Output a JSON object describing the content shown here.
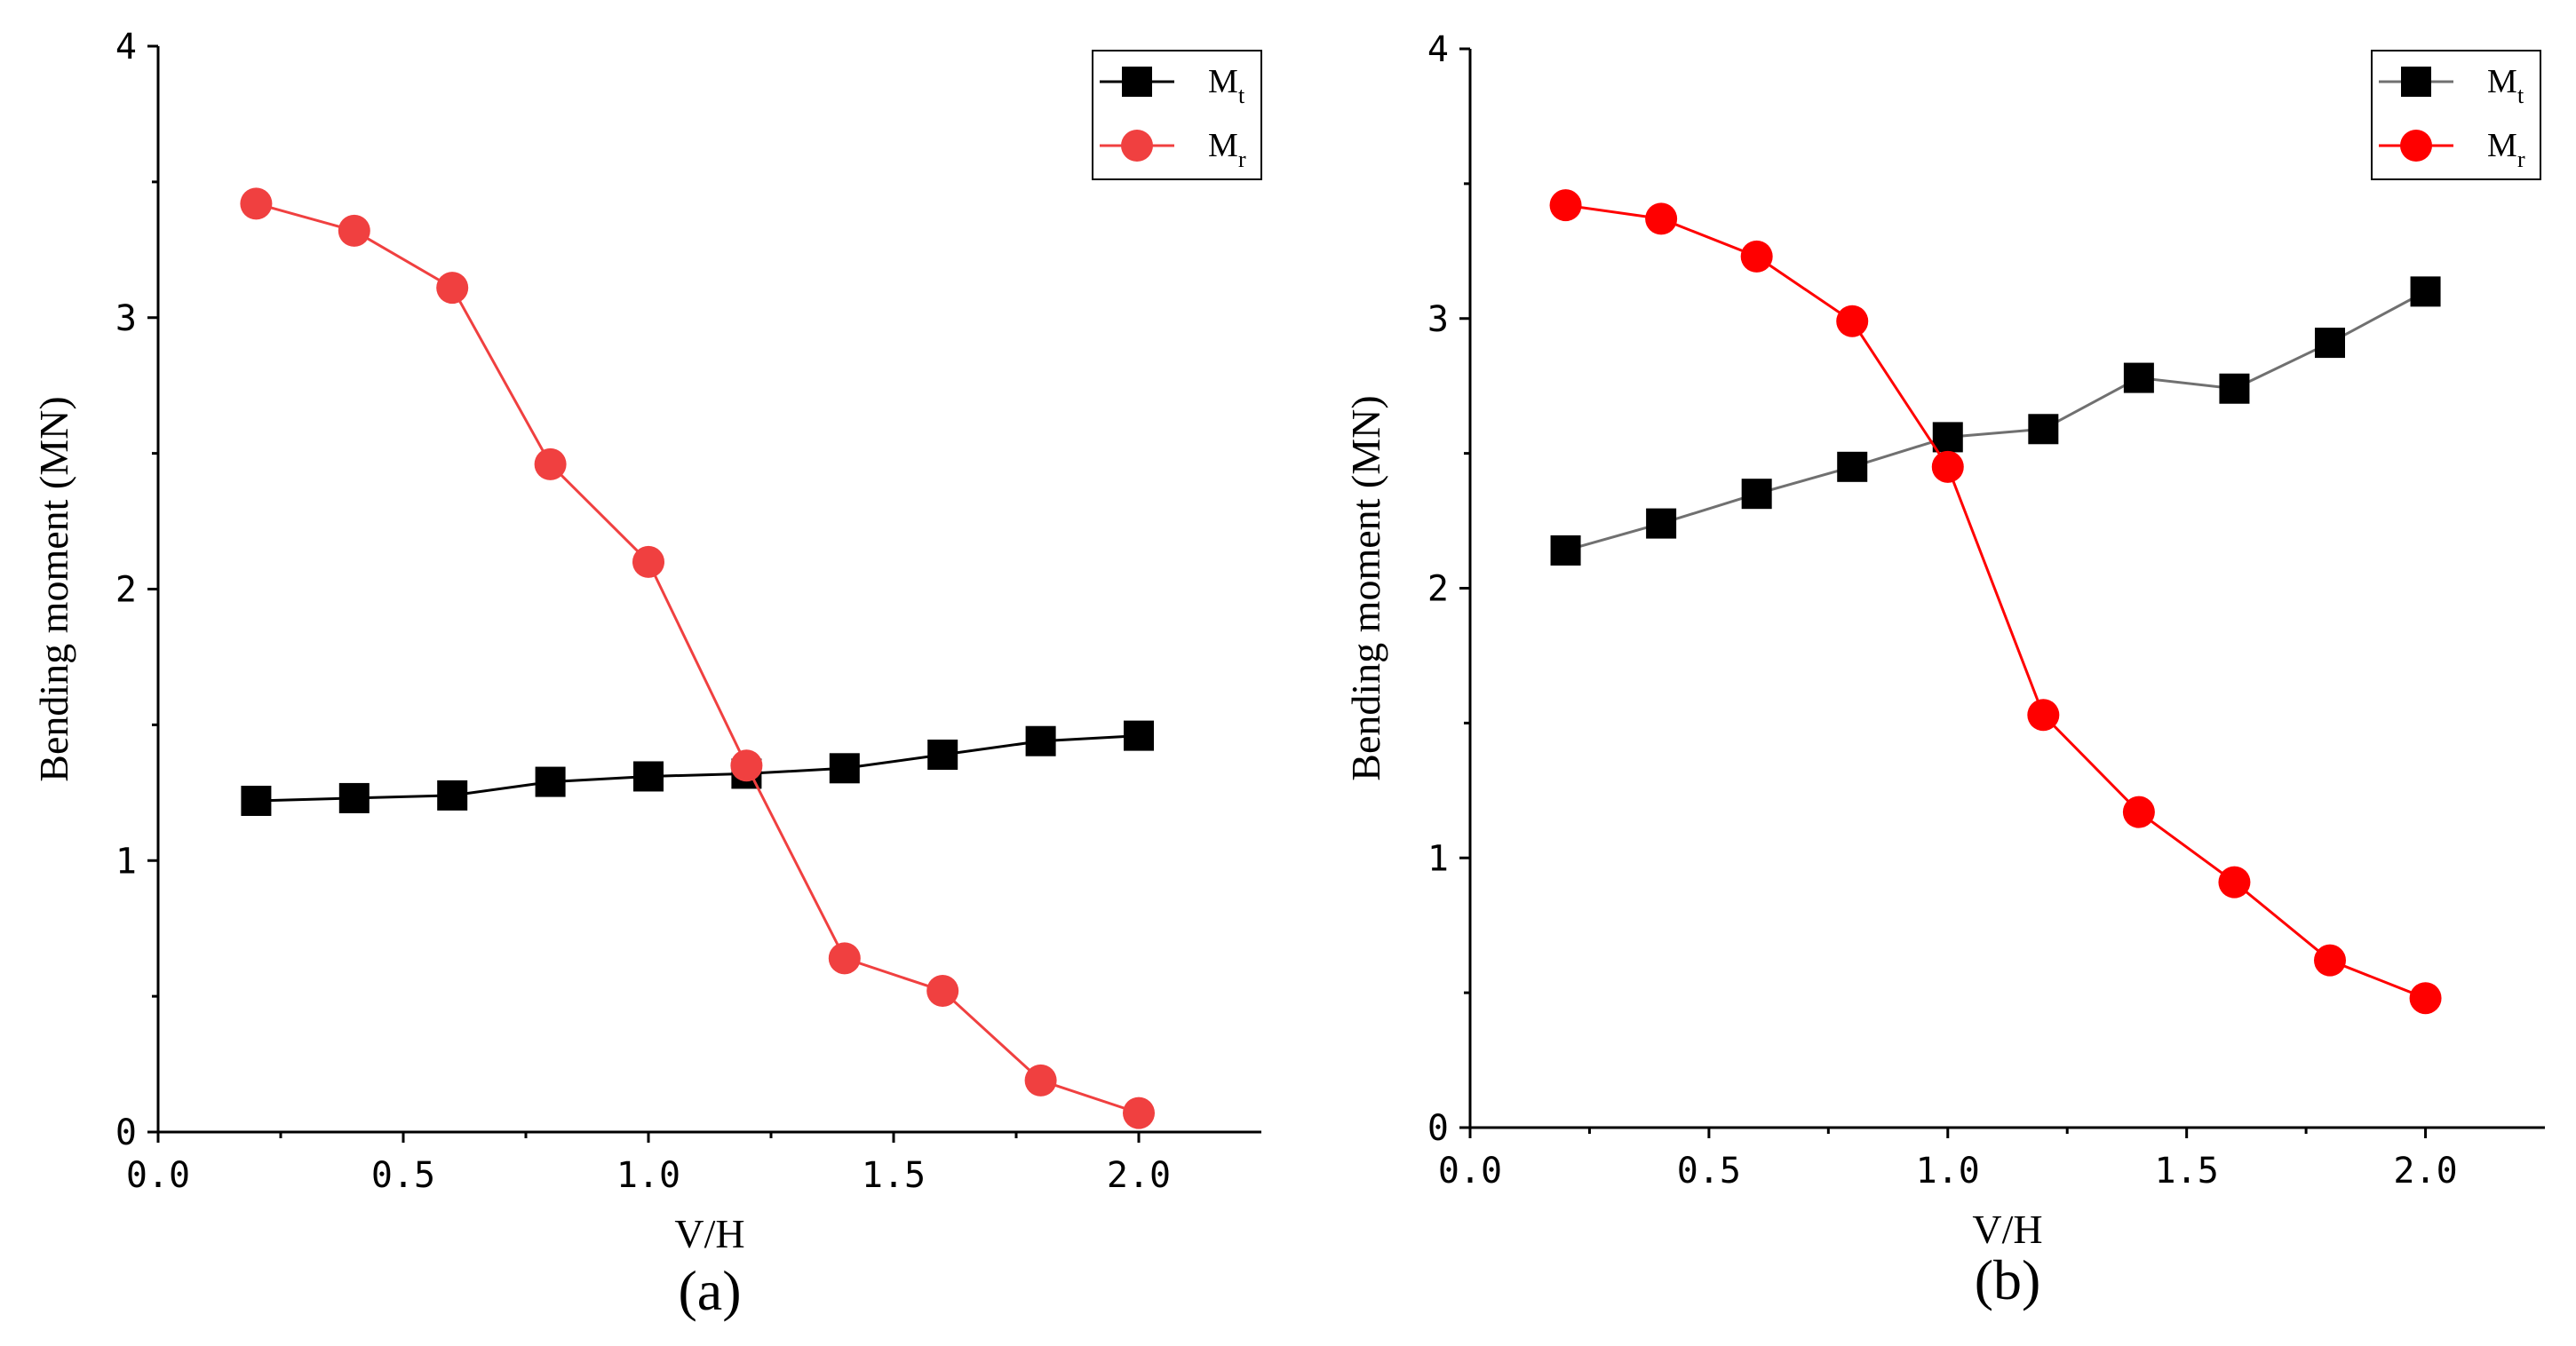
{
  "chart_data": [
    {
      "type": "line",
      "caption": "(a)",
      "xlabel": "V/H",
      "ylabel": "Bending moment (MN)",
      "xlim": [
        0.0,
        2.25
      ],
      "ylim": [
        0,
        4
      ],
      "x_ticks": [
        "0.0",
        "0.5",
        "1.0",
        "1.5",
        "2.0"
      ],
      "y_ticks": [
        "0",
        "1",
        "2",
        "3",
        "4"
      ],
      "grid": false,
      "legend_position": "top-right",
      "x": [
        0.2,
        0.4,
        0.6,
        0.8,
        1.0,
        1.2,
        1.4,
        1.6,
        1.8,
        2.0
      ],
      "series": [
        {
          "name": "M",
          "subscript": "t",
          "marker": "square",
          "color": "#000000",
          "line_color": "#000000",
          "values": [
            1.22,
            1.23,
            1.24,
            1.29,
            1.31,
            1.32,
            1.34,
            1.39,
            1.44,
            1.46
          ]
        },
        {
          "name": "M",
          "subscript": "r",
          "marker": "circle",
          "color": "#f04040",
          "line_color": "#f04040",
          "values": [
            3.42,
            3.32,
            3.11,
            2.46,
            2.1,
            1.35,
            0.64,
            0.52,
            0.19,
            0.07
          ]
        }
      ]
    },
    {
      "type": "line",
      "caption": "(b)",
      "xlabel": "V/H",
      "ylabel": "Bending moment (MN)",
      "xlim": [
        0.0,
        2.25
      ],
      "ylim": [
        0,
        4
      ],
      "x_ticks": [
        "0.0",
        "0.5",
        "1.0",
        "1.5",
        "2.0"
      ],
      "y_ticks": [
        "0",
        "1",
        "2",
        "3",
        "4"
      ],
      "grid": false,
      "legend_position": "top-right",
      "x": [
        0.2,
        0.4,
        0.6,
        0.8,
        1.0,
        1.2,
        1.4,
        1.6,
        1.8,
        2.0
      ],
      "series": [
        {
          "name": "M",
          "subscript": "t",
          "marker": "square",
          "color": "#000000",
          "line_color": "#707070",
          "values": [
            2.14,
            2.24,
            2.35,
            2.45,
            2.56,
            2.59,
            2.78,
            2.74,
            2.91,
            3.1
          ]
        },
        {
          "name": "M",
          "subscript": "r",
          "marker": "circle",
          "color": "#ff0000",
          "line_color": "#ff0000",
          "values": [
            3.42,
            3.37,
            3.23,
            2.99,
            2.45,
            1.53,
            1.17,
            0.91,
            0.62,
            0.48
          ]
        }
      ]
    }
  ]
}
